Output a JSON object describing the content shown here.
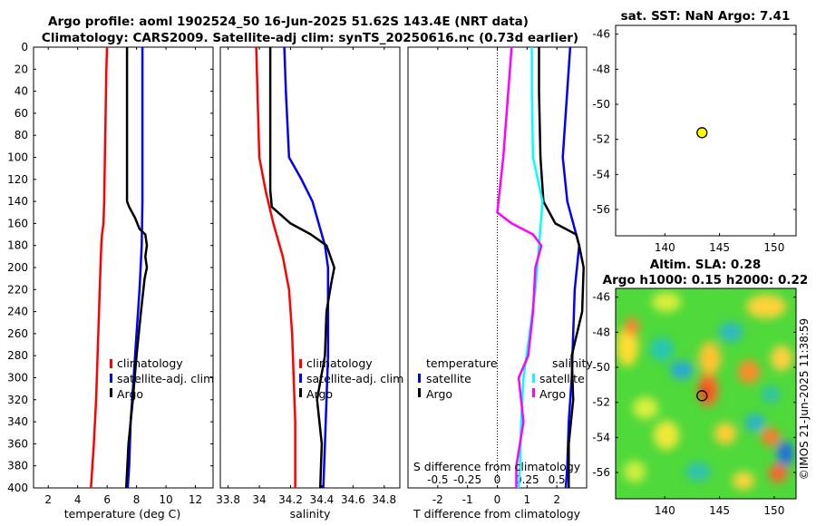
{
  "header": {
    "line1": "Argo profile: aoml 1902524_50 16-Jun-2025 51.62S 143.4E (NRT data)",
    "line2": "Climatology: CARS2009. Satellite-adj clim: synTS_20250616.nc (0.73d earlier)"
  },
  "depth_ticks": [
    "0",
    "20",
    "40",
    "60",
    "80",
    "100",
    "120",
    "140",
    "160",
    "180",
    "200",
    "220",
    "240",
    "260",
    "280",
    "300",
    "320",
    "340",
    "360",
    "380",
    "400"
  ],
  "colors": {
    "climatology": "#ff0000",
    "satellite": "#0000ff",
    "argo": "#000000",
    "cyan": "#00ffff",
    "magenta": "#ff00ff",
    "marker": "#ffff00"
  },
  "chart_data": [
    {
      "type": "line",
      "panel": "temperature",
      "xlabel": "temperature (deg C)",
      "xlim": [
        1,
        13.2
      ],
      "xticks": [
        "2",
        "4",
        "6",
        "8",
        "10",
        "12"
      ],
      "ylim": [
        0,
        400
      ],
      "legend": [
        "climatology",
        "satellite-adj. clim",
        "Argo"
      ],
      "series": [
        {
          "name": "climatology",
          "depth": [
            0,
            20,
            60,
            100,
            140,
            160,
            170,
            180,
            200,
            240,
            280,
            320,
            360,
            400
          ],
          "values": [
            6.0,
            5.95,
            5.9,
            5.85,
            5.8,
            5.75,
            5.65,
            5.6,
            5.55,
            5.45,
            5.35,
            5.25,
            5.1,
            4.9
          ]
        },
        {
          "name": "satellite-adj. clim",
          "depth": [
            0,
            40,
            100,
            140,
            180,
            220,
            260,
            300,
            340,
            380,
            400
          ],
          "values": [
            8.4,
            8.4,
            8.4,
            8.4,
            8.35,
            8.2,
            8.0,
            7.8,
            7.6,
            7.5,
            7.4
          ]
        },
        {
          "name": "Argo",
          "depth": [
            0,
            100,
            140,
            145,
            155,
            165,
            170,
            180,
            190,
            200,
            210,
            240,
            280,
            320,
            360,
            400
          ],
          "values": [
            7.35,
            7.35,
            7.35,
            7.5,
            7.9,
            8.2,
            8.6,
            8.7,
            8.6,
            8.7,
            8.55,
            8.3,
            8.0,
            7.75,
            7.45,
            7.3
          ]
        }
      ]
    },
    {
      "type": "line",
      "panel": "salinity",
      "xlabel": "salinity",
      "xlim": [
        33.75,
        34.9
      ],
      "xticks": [
        "33.8",
        "34",
        "34.2",
        "34.4",
        "34.6",
        "34.8"
      ],
      "ylim": [
        0,
        400
      ],
      "legend": [
        "climatology",
        "satellite-adj. clim",
        "Argo"
      ],
      "series": [
        {
          "name": "climatology",
          "depth": [
            0,
            100,
            130,
            160,
            190,
            220,
            260,
            300,
            340,
            380,
            400
          ],
          "values": [
            33.98,
            34.0,
            34.04,
            34.09,
            34.15,
            34.19,
            34.21,
            34.22,
            34.23,
            34.23,
            34.23
          ]
        },
        {
          "name": "satellite-adj. clim",
          "depth": [
            0,
            40,
            100,
            120,
            140,
            160,
            180,
            200,
            240,
            280,
            320,
            360,
            400
          ],
          "values": [
            34.16,
            34.17,
            34.19,
            34.27,
            34.34,
            34.38,
            34.42,
            34.44,
            34.44,
            34.44,
            34.43,
            34.42,
            34.41
          ]
        },
        {
          "name": "Argo",
          "depth": [
            0,
            130,
            145,
            160,
            170,
            180,
            200,
            215,
            240,
            280,
            320,
            360,
            400
          ],
          "values": [
            34.07,
            34.07,
            34.08,
            34.2,
            34.33,
            34.43,
            34.48,
            34.46,
            34.43,
            34.42,
            34.37,
            34.4,
            34.39
          ]
        }
      ]
    },
    {
      "type": "line",
      "panel": "difference",
      "xlabel": "T difference from climatology",
      "xlabel_top": "S difference from climatology",
      "xlim": [
        -3,
        3
      ],
      "xticks": [
        "-2",
        "-1",
        "0",
        "1",
        "2"
      ],
      "xticks_top": [
        "-0.5",
        "-0.25",
        "0",
        "0.25",
        "0.5"
      ],
      "ylim": [
        0,
        400
      ],
      "legend_left": {
        "title": "temperature",
        "entries": [
          "satellite",
          "Argo"
        ]
      },
      "legend_right": {
        "title": "salinity",
        "entries": [
          "satellite",
          "Argo"
        ]
      },
      "series": [
        {
          "name": "T satellite",
          "depth": [
            0,
            100,
            140,
            180,
            220,
            260,
            300,
            340,
            380,
            400
          ],
          "values": [
            2.45,
            2.2,
            2.35,
            2.75,
            2.6,
            2.55,
            2.5,
            2.4,
            2.35,
            2.3
          ]
        },
        {
          "name": "T Argo",
          "depth": [
            0,
            40,
            100,
            140,
            160,
            170,
            180,
            200,
            240,
            280,
            320,
            360,
            400
          ],
          "values": [
            1.4,
            1.4,
            1.45,
            1.55,
            1.95,
            2.65,
            2.75,
            2.9,
            2.85,
            2.5,
            2.55,
            2.4,
            2.4
          ]
        },
        {
          "name": "S satellite",
          "depth": [
            0,
            40,
            100,
            140,
            180,
            220,
            260,
            300,
            340,
            380,
            400
          ],
          "values": [
            0.29,
            0.29,
            0.3,
            0.38,
            0.35,
            0.32,
            0.27,
            0.22,
            0.2,
            0.19,
            0.18
          ]
        },
        {
          "name": "S Argo",
          "depth": [
            0,
            100,
            140,
            150,
            160,
            170,
            180,
            200,
            240,
            280,
            300,
            340,
            380,
            400
          ],
          "values": [
            0.12,
            0.05,
            0.01,
            0.0,
            0.12,
            0.3,
            0.37,
            0.32,
            0.3,
            0.26,
            0.18,
            0.22,
            0.16,
            0.16
          ]
        }
      ]
    },
    {
      "type": "scatter",
      "panel": "sst-map",
      "title": "sat. SST: NaN Argo: 7.41",
      "xlim": [
        135.5,
        152
      ],
      "ylim": [
        -57.5,
        -45.5
      ],
      "xticks": [
        "140",
        "145",
        "150"
      ],
      "yticks": [
        "-46",
        "-48",
        "-50",
        "-52",
        "-54",
        "-56"
      ],
      "points": [
        {
          "lon": 143.4,
          "lat": -51.62
        }
      ]
    },
    {
      "type": "heatmap",
      "panel": "sla-map",
      "title1": "Altim. SLA: 0.28",
      "title2": "Argo h1000: 0.15 h2000: 0.22",
      "xlim": [
        135.5,
        152
      ],
      "ylim": [
        -57.5,
        -45.5
      ],
      "xticks": [
        "140",
        "145",
        "150"
      ],
      "yticks": [
        "-46",
        "-48",
        "-50",
        "-52",
        "-54",
        "-56"
      ],
      "points": [
        {
          "lon": 143.4,
          "lat": -51.62
        }
      ]
    }
  ],
  "footer": {
    "stamp": "©IMOS 21-Jun-2025 11:38:59"
  }
}
